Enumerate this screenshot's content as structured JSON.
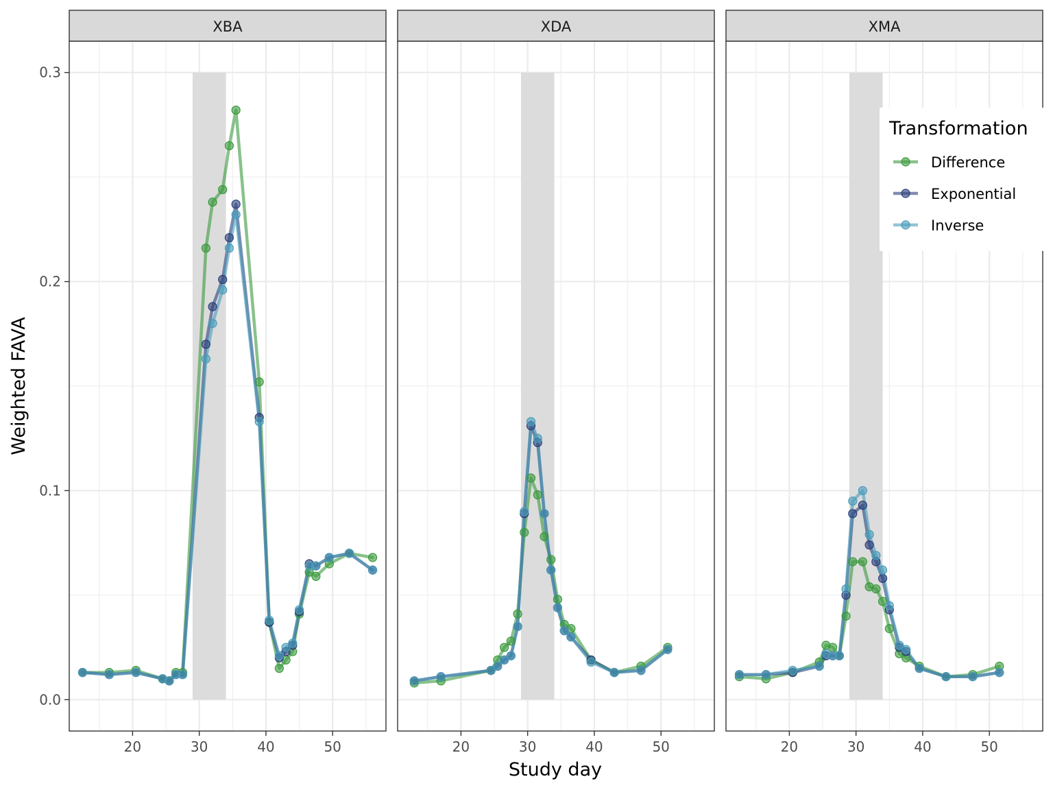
{
  "chart_data": {
    "type": "line",
    "xlabel": "Study day",
    "ylabel": "Weighted FAVA",
    "xlim": [
      10.5,
      58
    ],
    "ylim": [
      -0.015,
      0.315
    ],
    "x_ticks": [
      20,
      30,
      40,
      50
    ],
    "x_tick_labels": [
      "20",
      "30",
      "40",
      "50"
    ],
    "y_ticks": [
      0.0,
      0.1,
      0.2,
      0.3
    ],
    "y_tick_labels": [
      "0.0",
      "0.1",
      "0.2",
      "0.3"
    ],
    "grid": true,
    "shaded_band": {
      "x": [
        29,
        34
      ],
      "y": [
        0,
        0.3
      ]
    },
    "legend": {
      "title": "Transformation",
      "placement": "right",
      "entries": [
        "Difference",
        "Exponential",
        "Inverse"
      ]
    },
    "colors": {
      "Difference": "#3a9a3d",
      "Exponential": "#2c3f7a",
      "Inverse": "#4a9cba"
    },
    "panels": [
      {
        "name": "XBA",
        "series": [
          {
            "name": "Difference",
            "x": [
              12.5,
              16.5,
              20.5,
              24.5,
              25.5,
              26.5,
              27.5,
              31,
              32,
              33.5,
              34.5,
              35.5,
              39,
              40.5,
              42,
              43,
              44,
              45,
              46.5,
              47.5,
              49.5,
              52.5,
              56
            ],
            "y": [
              0.013,
              0.013,
              0.014,
              0.01,
              0.009,
              0.013,
              0.013,
              0.216,
              0.238,
              0.244,
              0.265,
              0.282,
              0.152,
              0.037,
              0.015,
              0.019,
              0.023,
              0.041,
              0.061,
              0.059,
              0.065,
              0.07,
              0.068
            ]
          },
          {
            "name": "Exponential",
            "x": [
              12.5,
              16.5,
              20.5,
              24.5,
              25.5,
              26.5,
              27.5,
              31,
              32,
              33.5,
              34.5,
              35.5,
              39,
              40.5,
              42,
              43,
              44,
              45,
              46.5,
              47.5,
              49.5,
              52.5,
              56
            ],
            "y": [
              0.013,
              0.012,
              0.013,
              0.01,
              0.009,
              0.012,
              0.012,
              0.17,
              0.188,
              0.201,
              0.221,
              0.237,
              0.135,
              0.037,
              0.02,
              0.023,
              0.026,
              0.042,
              0.065,
              0.064,
              0.068,
              0.07,
              0.062
            ]
          },
          {
            "name": "Inverse",
            "x": [
              12.5,
              16.5,
              20.5,
              24.5,
              25.5,
              26.5,
              27.5,
              31,
              32,
              33.5,
              34.5,
              35.5,
              39,
              40.5,
              42,
              43,
              44,
              45,
              46.5,
              47.5,
              49.5,
              52.5,
              56
            ],
            "y": [
              0.013,
              0.012,
              0.013,
              0.01,
              0.009,
              0.012,
              0.012,
              0.163,
              0.18,
              0.196,
              0.216,
              0.232,
              0.133,
              0.038,
              0.021,
              0.025,
              0.027,
              0.043,
              0.064,
              0.064,
              0.068,
              0.07,
              0.062
            ]
          }
        ]
      },
      {
        "name": "XDA",
        "series": [
          {
            "name": "Difference",
            "x": [
              13,
              17,
              24.5,
              25.5,
              26.5,
              27.5,
              28.5,
              29.5,
              30.5,
              31.5,
              32.5,
              33.5,
              34.5,
              35.5,
              36.5,
              39.5,
              43,
              47,
              51
            ],
            "y": [
              0.008,
              0.009,
              0.014,
              0.019,
              0.025,
              0.028,
              0.041,
              0.08,
              0.106,
              0.098,
              0.078,
              0.067,
              0.048,
              0.036,
              0.034,
              0.019,
              0.013,
              0.016,
              0.025
            ]
          },
          {
            "name": "Exponential",
            "x": [
              13,
              17,
              24.5,
              25.5,
              26.5,
              27.5,
              28.5,
              29.5,
              30.5,
              31.5,
              32.5,
              33.5,
              34.5,
              35.5,
              36.5,
              39.5,
              43,
              47,
              51
            ],
            "y": [
              0.009,
              0.011,
              0.014,
              0.016,
              0.019,
              0.021,
              0.035,
              0.089,
              0.131,
              0.123,
              0.089,
              0.062,
              0.044,
              0.033,
              0.03,
              0.019,
              0.013,
              0.014,
              0.024
            ]
          },
          {
            "name": "Inverse",
            "x": [
              13,
              17,
              24.5,
              25.5,
              26.5,
              27.5,
              28.5,
              29.5,
              30.5,
              31.5,
              32.5,
              33.5,
              34.5,
              35.5,
              36.5,
              39.5,
              43,
              47,
              51
            ],
            "y": [
              0.009,
              0.011,
              0.014,
              0.016,
              0.019,
              0.021,
              0.035,
              0.09,
              0.133,
              0.125,
              0.089,
              0.062,
              0.044,
              0.033,
              0.03,
              0.018,
              0.013,
              0.014,
              0.024
            ]
          }
        ]
      },
      {
        "name": "XMA",
        "series": [
          {
            "name": "Difference",
            "x": [
              12.5,
              16.5,
              20.5,
              24.5,
              25.5,
              26.5,
              27.5,
              28.5,
              29.5,
              31,
              32,
              33,
              34,
              35,
              36.5,
              37.5,
              39.5,
              43.5,
              47.5,
              51.5
            ],
            "y": [
              0.011,
              0.01,
              0.013,
              0.018,
              0.026,
              0.025,
              0.021,
              0.04,
              0.066,
              0.066,
              0.054,
              0.053,
              0.047,
              0.034,
              0.022,
              0.02,
              0.016,
              0.011,
              0.012,
              0.016
            ]
          },
          {
            "name": "Exponential",
            "x": [
              12.5,
              16.5,
              20.5,
              24.5,
              25.5,
              26.5,
              27.5,
              28.5,
              29.5,
              31,
              32,
              33,
              34,
              35,
              36.5,
              37.5,
              39.5,
              43.5,
              47.5,
              51.5
            ],
            "y": [
              0.012,
              0.012,
              0.013,
              0.016,
              0.021,
              0.021,
              0.021,
              0.05,
              0.089,
              0.093,
              0.074,
              0.066,
              0.058,
              0.043,
              0.025,
              0.023,
              0.015,
              0.011,
              0.011,
              0.013
            ]
          },
          {
            "name": "Inverse",
            "x": [
              12.5,
              16.5,
              20.5,
              24.5,
              25.5,
              26.5,
              27.5,
              28.5,
              29.5,
              31,
              32,
              33,
              34,
              35,
              36.5,
              37.5,
              39.5,
              43.5,
              47.5,
              51.5
            ],
            "y": [
              0.012,
              0.012,
              0.014,
              0.016,
              0.022,
              0.021,
              0.021,
              0.053,
              0.095,
              0.1,
              0.079,
              0.069,
              0.062,
              0.045,
              0.026,
              0.024,
              0.015,
              0.011,
              0.011,
              0.013
            ]
          }
        ]
      }
    ]
  }
}
